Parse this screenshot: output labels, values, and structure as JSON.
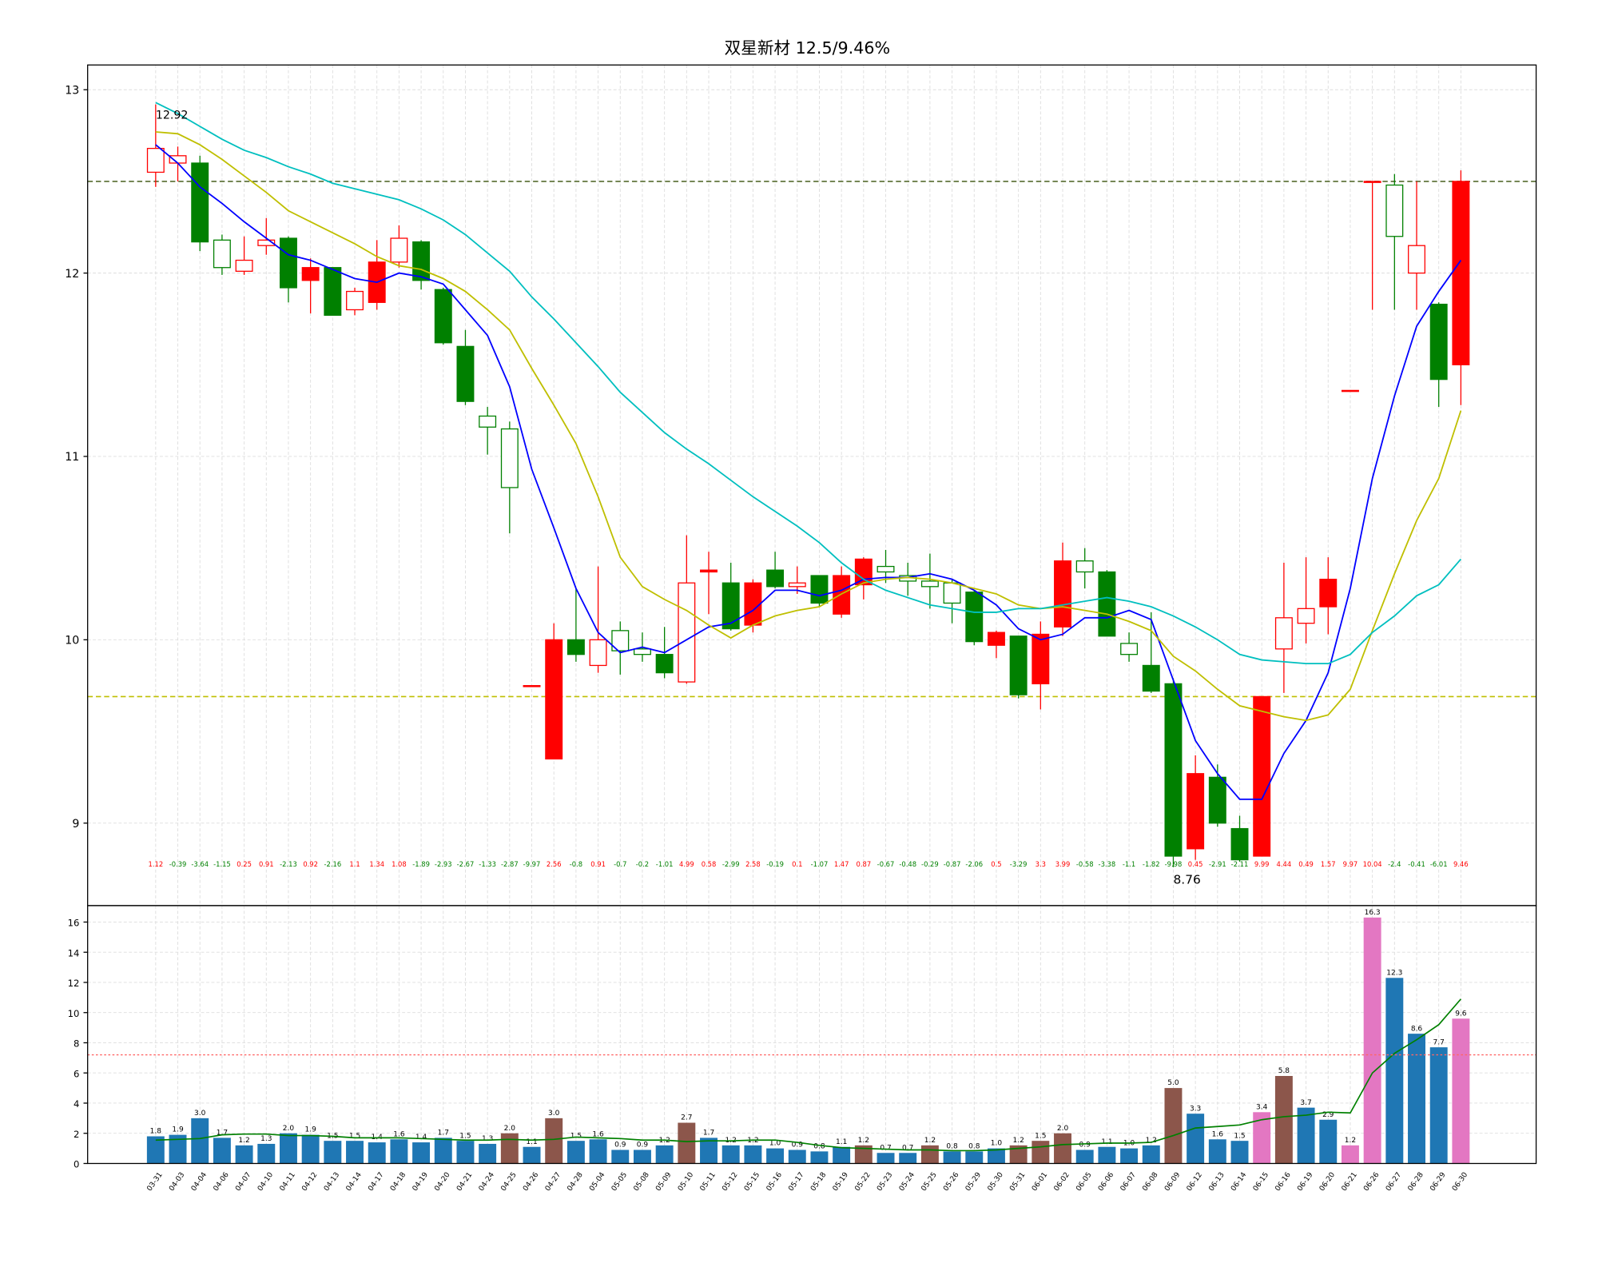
{
  "chart_data": [
    {
      "type": "candlestick",
      "title": "双星新材 12.5/9.46%",
      "open": [
        12.55,
        12.6,
        12.6,
        12.18,
        12.01,
        12.15,
        12.19,
        11.96,
        12.03,
        11.8,
        11.84,
        12.06,
        12.17,
        11.91,
        11.6,
        11.22,
        11.15,
        9.75,
        9.35,
        10.0,
        9.86,
        10.05,
        9.95,
        9.92,
        9.77,
        10.37,
        10.31,
        10.08,
        10.38,
        10.29,
        10.35,
        10.14,
        10.3,
        10.4,
        10.35,
        10.32,
        10.31,
        10.26,
        9.97,
        10.02,
        9.76,
        10.07,
        10.43,
        10.37,
        9.98,
        9.86,
        9.76,
        8.86,
        9.25,
        8.97,
        8.82,
        9.95,
        10.09,
        10.18,
        11.36,
        12.5,
        12.48,
        12.0,
        11.83,
        11.5
      ],
      "high": [
        12.92,
        12.69,
        12.64,
        12.21,
        12.2,
        12.3,
        12.2,
        12.08,
        12.03,
        11.92,
        12.18,
        12.26,
        12.18,
        11.92,
        11.69,
        11.27,
        11.19,
        9.75,
        10.09,
        10.28,
        10.4,
        10.1,
        10.04,
        10.07,
        10.57,
        10.48,
        10.42,
        10.33,
        10.48,
        10.4,
        10.35,
        10.4,
        10.45,
        10.49,
        10.42,
        10.47,
        10.33,
        10.27,
        10.05,
        10.02,
        10.1,
        10.53,
        10.5,
        10.38,
        10.04,
        10.15,
        9.79,
        9.37,
        9.32,
        9.04,
        9.69,
        10.42,
        10.45,
        10.45,
        11.36,
        12.5,
        12.54,
        12.5,
        11.84,
        12.56
      ],
      "low": [
        12.47,
        12.5,
        12.12,
        11.99,
        11.99,
        12.1,
        11.84,
        11.78,
        11.77,
        11.77,
        11.8,
        12.03,
        11.91,
        11.61,
        11.28,
        11.01,
        10.58,
        9.75,
        9.35,
        9.88,
        9.82,
        9.81,
        9.88,
        9.79,
        9.76,
        10.14,
        10.05,
        10.04,
        10.28,
        10.25,
        10.18,
        10.12,
        10.22,
        10.31,
        10.24,
        10.17,
        10.09,
        9.97,
        9.9,
        9.68,
        9.62,
        10.02,
        10.28,
        10.02,
        9.88,
        9.71,
        8.76,
        8.8,
        8.98,
        8.79,
        8.82,
        9.71,
        9.98,
        10.03,
        11.36,
        11.8,
        11.8,
        11.8,
        11.27,
        11.28
      ],
      "close": [
        12.68,
        12.64,
        12.17,
        12.03,
        12.07,
        12.18,
        11.92,
        12.03,
        11.77,
        11.9,
        12.06,
        12.19,
        11.96,
        11.62,
        11.3,
        11.16,
        10.83,
        9.75,
        10.0,
        9.92,
        10.0,
        9.94,
        9.92,
        9.82,
        10.31,
        10.38,
        10.06,
        10.31,
        10.29,
        10.31,
        10.2,
        10.35,
        10.44,
        10.37,
        10.32,
        10.29,
        10.2,
        9.99,
        10.04,
        9.7,
        10.03,
        10.43,
        10.37,
        10.02,
        9.92,
        9.72,
        8.82,
        9.27,
        9.0,
        8.8,
        9.69,
        10.12,
        10.17,
        10.33,
        11.36,
        12.5,
        12.2,
        12.15,
        11.42,
        12.5
      ],
      "candle_colors": [
        "#ff0000",
        "#ff0000",
        "#008000",
        "#008000",
        "#ff0000",
        "#ff0000",
        "#008000",
        "#ff0000",
        "#008000",
        "#ff0000",
        "#ff0000",
        "#ff0000",
        "#008000",
        "#008000",
        "#008000",
        "#008000",
        "#008000",
        "#ff0000",
        "#ff0000",
        "#008000",
        "#ff0000",
        "#008000",
        "#008000",
        "#008000",
        "#ff0000",
        "#ff0000",
        "#008000",
        "#ff0000",
        "#008000",
        "#ff0000",
        "#008000",
        "#ff0000",
        "#ff0000",
        "#008000",
        "#008000",
        "#008000",
        "#008000",
        "#008000",
        "#ff0000",
        "#008000",
        "#ff0000",
        "#ff0000",
        "#008000",
        "#008000",
        "#008000",
        "#008000",
        "#008000",
        "#ff0000",
        "#008000",
        "#008000",
        "#ff0000",
        "#ff0000",
        "#ff0000",
        "#ff0000",
        "#ff0000",
        "#ff0000",
        "#008000",
        "#ff0000",
        "#008000",
        "#ff0000"
      ],
      "hollow": [
        true,
        true,
        false,
        true,
        true,
        true,
        false,
        false,
        false,
        true,
        false,
        true,
        false,
        false,
        false,
        true,
        true,
        false,
        false,
        false,
        true,
        true,
        true,
        false,
        true,
        false,
        false,
        false,
        false,
        true,
        false,
        false,
        false,
        true,
        true,
        true,
        true,
        false,
        false,
        false,
        false,
        false,
        true,
        false,
        true,
        false,
        false,
        false,
        false,
        false,
        false,
        true,
        true,
        false,
        false,
        true,
        true,
        true,
        false,
        false
      ],
      "pct_change": [
        1.12,
        -0.39,
        -3.64,
        -1.15,
        0.25,
        0.91,
        -2.13,
        0.92,
        -2.16,
        1.1,
        1.34,
        1.08,
        -1.89,
        -2.93,
        -2.67,
        -1.33,
        -2.87,
        -9.97,
        2.56,
        -0.8,
        0.91,
        -0.7,
        -0.2,
        -1.01,
        4.99,
        0.58,
        -2.99,
        2.58,
        -0.19,
        0.1,
        -1.07,
        1.47,
        0.87,
        -0.67,
        -0.48,
        -0.29,
        -0.87,
        -2.06,
        0.5,
        -3.29,
        3.3,
        3.99,
        -0.58,
        -3.38,
        -1.1,
        -1.82,
        -9.98,
        0.45,
        -2.91,
        -2.11,
        9.99,
        4.44,
        0.49,
        1.57,
        9.97,
        10.04,
        -2.4,
        -0.41,
        -6.01,
        9.46
      ],
      "ma_lines": [
        {
          "color": "#0000ff",
          "values": [
            12.7,
            12.6,
            12.47,
            12.38,
            12.28,
            12.19,
            12.1,
            12.07,
            12.02,
            11.97,
            11.95,
            12.0,
            11.98,
            11.94,
            11.8,
            11.66,
            11.38,
            10.93,
            10.61,
            10.28,
            10.04,
            9.93,
            9.96,
            9.93,
            10.0,
            10.07,
            10.09,
            10.16,
            10.27,
            10.27,
            10.24,
            10.27,
            10.33,
            10.34,
            10.34,
            10.36,
            10.33,
            10.27,
            10.19,
            10.06,
            10.0,
            10.03,
            10.12,
            10.12,
            10.16,
            10.11,
            9.78,
            9.45,
            9.27,
            9.13,
            9.13,
            9.38,
            9.56,
            9.82,
            10.28,
            10.88,
            11.33,
            11.71,
            11.9,
            12.07
          ]
        },
        {
          "color": "#bfbf00",
          "values": [
            12.77,
            12.76,
            12.7,
            12.62,
            12.53,
            12.44,
            12.34,
            12.28,
            12.22,
            12.16,
            12.09,
            12.04,
            12.02,
            11.97,
            11.9,
            11.8,
            11.69,
            11.48,
            11.28,
            11.07,
            10.78,
            10.45,
            10.29,
            10.22,
            10.16,
            10.08,
            10.01,
            10.08,
            10.13,
            10.16,
            10.18,
            10.25,
            10.31,
            10.33,
            10.34,
            10.33,
            10.31,
            10.28,
            10.25,
            10.19,
            10.17,
            10.18,
            10.16,
            10.14,
            10.1,
            10.05,
            9.91,
            9.83,
            9.73,
            9.64,
            9.61,
            9.58,
            9.56,
            9.59,
            9.73,
            10.05,
            10.36,
            10.65,
            10.88,
            11.25
          ]
        },
        {
          "color": "#00bfbf",
          "values": [
            12.93,
            12.87,
            12.8,
            12.73,
            12.67,
            12.63,
            12.58,
            12.54,
            12.49,
            12.46,
            12.43,
            12.4,
            12.35,
            12.29,
            12.21,
            12.11,
            12.01,
            11.87,
            11.75,
            11.62,
            11.49,
            11.35,
            11.24,
            11.13,
            11.04,
            10.96,
            10.87,
            10.78,
            10.7,
            10.62,
            10.53,
            10.42,
            10.33,
            10.27,
            10.23,
            10.19,
            10.17,
            10.15,
            10.15,
            10.17,
            10.17,
            10.19,
            10.21,
            10.23,
            10.21,
            10.18,
            10.13,
            10.07,
            10.0,
            9.92,
            9.89,
            9.88,
            9.87,
            9.87,
            9.92,
            10.04,
            10.13,
            10.24,
            10.3,
            10.44
          ]
        }
      ],
      "hlines": [
        {
          "value": 12.5,
          "color": "#556b2f"
        },
        {
          "value": 9.69,
          "color": "#bfbf00"
        }
      ],
      "ylim": [
        8.55,
        13.135
      ],
      "yticks": [
        9,
        10,
        11,
        12,
        13
      ],
      "grid": true
    },
    {
      "type": "bar",
      "categories": [
        "03-31",
        "04-03",
        "04-04",
        "04-06",
        "04-07",
        "04-10",
        "04-11",
        "04-12",
        "04-13",
        "04-14",
        "04-17",
        "04-18",
        "04-19",
        "04-20",
        "04-21",
        "04-24",
        "04-25",
        "04-26",
        "04-27",
        "04-28",
        "05-04",
        "05-05",
        "05-08",
        "05-09",
        "05-10",
        "05-11",
        "05-12",
        "05-15",
        "05-16",
        "05-17",
        "05-18",
        "05-19",
        "05-22",
        "05-23",
        "05-24",
        "05-25",
        "05-26",
        "05-29",
        "05-30",
        "05-31",
        "06-01",
        "06-02",
        "06-05",
        "06-06",
        "06-07",
        "06-08",
        "06-09",
        "06-12",
        "06-13",
        "06-14",
        "06-15",
        "06-16",
        "06-19",
        "06-20",
        "06-21",
        "06-26",
        "06-27",
        "06-28",
        "06-29",
        "06-30"
      ],
      "values": [
        1.8,
        1.9,
        3,
        1.7,
        1.2,
        1.3,
        2,
        1.9,
        1.5,
        1.5,
        1.4,
        1.6,
        1.4,
        1.7,
        1.5,
        1.3,
        2,
        1.1,
        3,
        1.5,
        1.6,
        0.9,
        0.9,
        1.2,
        2.7,
        1.7,
        1.2,
        1.2,
        1,
        0.9,
        0.8,
        1.1,
        1.2,
        0.7,
        0.7,
        1.2,
        0.8,
        0.8,
        1,
        1.2,
        1.5,
        2,
        0.9,
        1.1,
        1,
        1.2,
        5,
        3.3,
        1.6,
        1.5,
        3.4,
        5.8,
        3.7,
        2.9,
        1.2,
        16.3,
        12.3,
        8.6,
        7.7,
        9.6
      ],
      "value_labels": [
        "1.8",
        "1.9",
        "3.0",
        "1.7",
        "1.2",
        "1.3",
        "2.0",
        "1.9",
        "1.5",
        "1.5",
        "1.4",
        "1.6",
        "1.4",
        "1.7",
        "1.5",
        "1.3",
        "2.0",
        "1.1",
        "3.0",
        "1.5",
        "1.6",
        "0.9",
        "0.9",
        "1.2",
        "2.7",
        "1.7",
        "1.2",
        "1.2",
        "1.0",
        "0.9",
        "0.8",
        "1.1",
        "1.2",
        "0.7",
        "0.7",
        "1.2",
        "0.8",
        "0.8",
        "1.0",
        "1.2",
        "1.5",
        "2.0",
        "0.9",
        "1.1",
        "1.0",
        "1.2",
        "5.0",
        "3.3",
        "1.6",
        "1.5",
        "3.4",
        "5.8",
        "3.7",
        "2.9",
        "1.2",
        "16.3",
        "12.3",
        "8.6",
        "7.7",
        "9.6"
      ],
      "colors": [
        "#1f77b4",
        "#1f77b4",
        "#1f77b4",
        "#1f77b4",
        "#1f77b4",
        "#1f77b4",
        "#1f77b4",
        "#1f77b4",
        "#1f77b4",
        "#1f77b4",
        "#1f77b4",
        "#1f77b4",
        "#1f77b4",
        "#1f77b4",
        "#1f77b4",
        "#1f77b4",
        "#8c564b",
        "#1f77b4",
        "#8c564b",
        "#1f77b4",
        "#1f77b4",
        "#1f77b4",
        "#1f77b4",
        "#1f77b4",
        "#8c564b",
        "#1f77b4",
        "#1f77b4",
        "#1f77b4",
        "#1f77b4",
        "#1f77b4",
        "#1f77b4",
        "#1f77b4",
        "#8c564b",
        "#1f77b4",
        "#1f77b4",
        "#8c564b",
        "#1f77b4",
        "#1f77b4",
        "#1f77b4",
        "#8c564b",
        "#8c564b",
        "#8c564b",
        "#1f77b4",
        "#1f77b4",
        "#1f77b4",
        "#1f77b4",
        "#8c564b",
        "#1f77b4",
        "#1f77b4",
        "#1f77b4",
        "#e377c2",
        "#8c564b",
        "#1f77b4",
        "#1f77b4",
        "#e377c2",
        "#e377c2",
        "#1f77b4",
        "#1f77b4",
        "#1f77b4",
        "#e377c2"
      ],
      "ma_line": {
        "color": "#008000",
        "values": [
          1.55,
          1.6,
          1.65,
          1.9,
          1.95,
          1.95,
          1.85,
          1.85,
          1.8,
          1.7,
          1.7,
          1.7,
          1.65,
          1.6,
          1.55,
          1.55,
          1.6,
          1.55,
          1.6,
          1.75,
          1.7,
          1.65,
          1.55,
          1.55,
          1.45,
          1.5,
          1.5,
          1.55,
          1.55,
          1.4,
          1.2,
          1.05,
          1,
          0.95,
          0.9,
          0.9,
          0.85,
          0.85,
          0.9,
          1,
          1.1,
          1.25,
          1.3,
          1.35,
          1.35,
          1.4,
          1.85,
          2.35,
          2.45,
          2.55,
          2.9,
          3.1,
          3.2,
          3.4,
          3.35,
          6,
          7.3,
          8.2,
          9.2,
          10.9
        ]
      },
      "hlines": [
        {
          "value": 7.2,
          "color": "#ff6666"
        }
      ],
      "ylim": [
        0,
        17.09
      ],
      "yticks": [
        0,
        2,
        4,
        6,
        8,
        10,
        12,
        14,
        16
      ],
      "grid": true
    }
  ]
}
